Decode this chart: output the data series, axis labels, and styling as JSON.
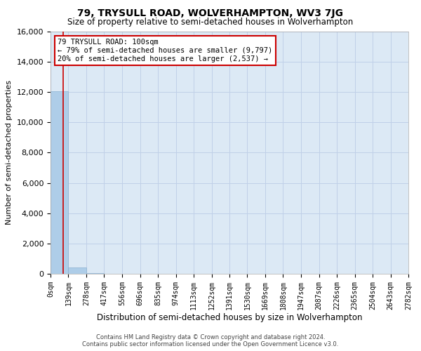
{
  "title": "79, TRYSULL ROAD, WOLVERHAMPTON, WV3 7JG",
  "subtitle": "Size of property relative to semi-detached houses in Wolverhampton",
  "xlabel": "Distribution of semi-detached houses by size in Wolverhampton",
  "ylabel": "Number of semi-detached properties",
  "footer_line1": "Contains HM Land Registry data © Crown copyright and database right 2024.",
  "footer_line2": "Contains public sector information licensed under the Open Government Licence v3.0.",
  "annotation_line1": "79 TRYSULL ROAD: 100sqm",
  "annotation_line2": "← 79% of semi-detached houses are smaller (9,797)",
  "annotation_line3": "20% of semi-detached houses are larger (2,537) →",
  "property_size": 100,
  "bin_edges": [
    0,
    139,
    278,
    417,
    556,
    696,
    835,
    974,
    1113,
    1252,
    1391,
    1530,
    1669,
    1808,
    1947,
    2087,
    2226,
    2365,
    2504,
    2643,
    2782
  ],
  "bin_labels": [
    "0sqm",
    "139sqm",
    "278sqm",
    "417sqm",
    "556sqm",
    "696sqm",
    "835sqm",
    "974sqm",
    "1113sqm",
    "1252sqm",
    "1391sqm",
    "1530sqm",
    "1669sqm",
    "1808sqm",
    "1947sqm",
    "2087sqm",
    "2226sqm",
    "2365sqm",
    "2504sqm",
    "2643sqm",
    "2782sqm"
  ],
  "bar_heights": [
    12050,
    410,
    25,
    8,
    3,
    2,
    1,
    1,
    0,
    0,
    0,
    0,
    0,
    0,
    0,
    0,
    0,
    0,
    0,
    0
  ],
  "bar_color": "#aecde8",
  "bar_edge_color": "#aecde8",
  "grid_color": "#c0d0e8",
  "background_color": "#dce9f5",
  "red_line_color": "#cc0000",
  "annotation_box_color": "#cc0000",
  "ylim": [
    0,
    16000
  ],
  "yticks": [
    0,
    2000,
    4000,
    6000,
    8000,
    10000,
    12000,
    14000,
    16000
  ]
}
